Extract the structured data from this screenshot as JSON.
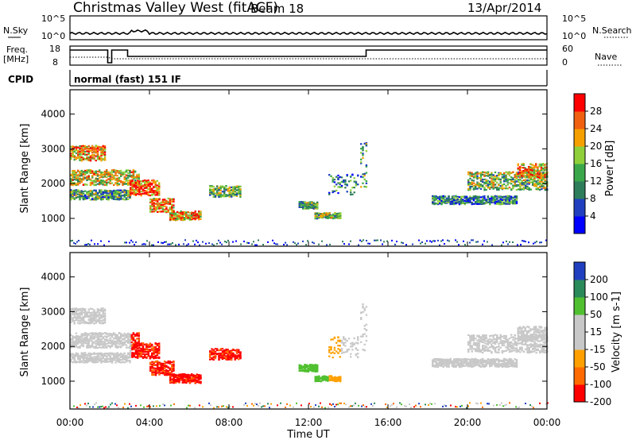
{
  "header": {
    "station": "Christmas Valley West (fitACF)",
    "beam": "Beam 18",
    "date": "13/Apr/2014"
  },
  "noise_panel": {
    "left_label": "N.Sky",
    "right_label": "N.Search",
    "left_ticks": [
      "10^5",
      "10^0"
    ],
    "right_ticks": [
      "10^5",
      "10^0"
    ]
  },
  "freq_panel": {
    "left_label_line1": "Freq.",
    "left_label_line2": "[MHz]",
    "right_label": "Nave",
    "left_ticks": [
      "18",
      "8"
    ],
    "right_ticks": [
      "60",
      "0"
    ]
  },
  "cpid": {
    "label": "CPID",
    "text": "normal (fast) 151 IF"
  },
  "colors": {
    "power": [
      "#0000ff",
      "#2040c0",
      "#2e7d5a",
      "#3aa84a",
      "#8fd03a",
      "#f5a000",
      "#f06010",
      "#ff0000"
    ],
    "velocity": [
      "#ff0000",
      "#ff6a00",
      "#ffa000",
      "#c8c8c8",
      "#c8c8c8",
      "#50c030",
      "#2a8a5a",
      "#2040c0"
    ]
  },
  "chart_data": [
    {
      "type": "heatmap",
      "name": "power",
      "ylabel": "Slant Range [km]",
      "ylim": [
        200,
        4700
      ],
      "yticks": [
        "4000",
        "3000",
        "2000",
        "1000"
      ],
      "colorbar_label": "Power [dB]",
      "colorbar_ticks": [
        "28",
        "24",
        "20",
        "16",
        "12",
        "8",
        "4"
      ],
      "colorbar_range": [
        0,
        32
      ]
    },
    {
      "type": "heatmap",
      "name": "velocity",
      "ylabel": "Slant Range [km]",
      "ylim": [
        200,
        4700
      ],
      "yticks": [
        "4000",
        "3000",
        "2000",
        "1000"
      ],
      "colorbar_label": "Velocity [m s-1]",
      "colorbar_ticks": [
        "200",
        "100",
        "50",
        "15",
        "-15",
        "-50",
        "-100",
        "-200"
      ],
      "xlabel": "Time UT",
      "xticks": [
        "00:00",
        "04:00",
        "08:00",
        "12:00",
        "16:00",
        "20:00",
        "00:00"
      ]
    }
  ]
}
